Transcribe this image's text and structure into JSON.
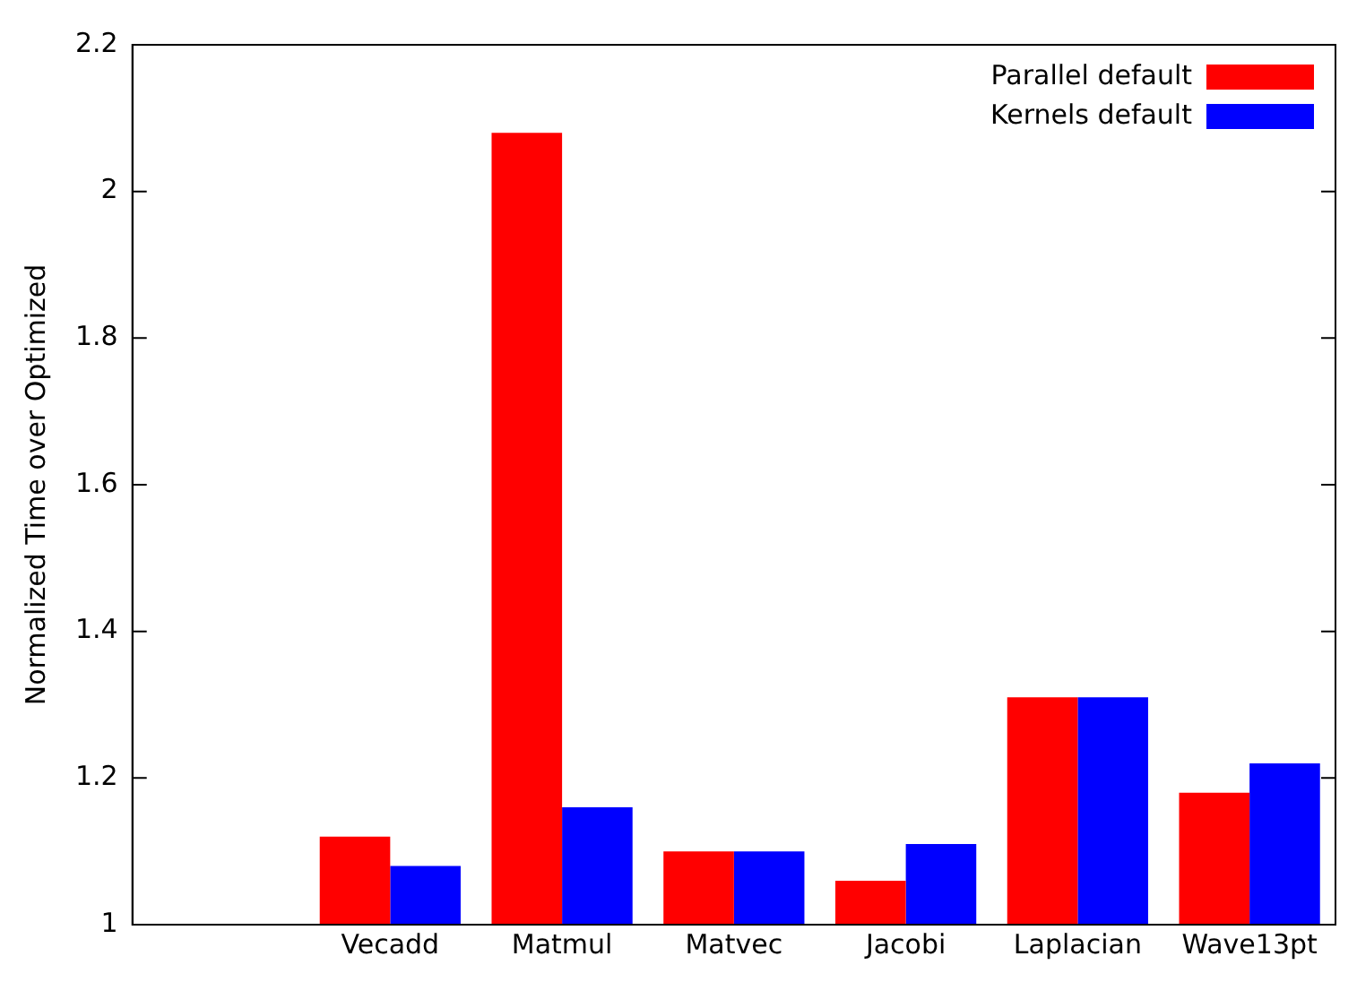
{
  "chart_data": {
    "type": "bar",
    "ylabel": "Normalized Time over Optimized",
    "categories": [
      null,
      "Vecadd",
      "Matmul",
      "Matvec",
      "Jacobi",
      "Laplacian",
      "Wave13pt"
    ],
    "series": [
      {
        "name": "Parallel default",
        "color": "#ff0000",
        "values": [
          null,
          1.12,
          2.08,
          1.1,
          1.06,
          1.31,
          1.18
        ]
      },
      {
        "name": "Kernels default",
        "color": "#0000ff",
        "values": [
          null,
          1.08,
          1.16,
          1.1,
          1.11,
          1.31,
          1.22
        ]
      }
    ],
    "ylim": [
      1,
      2.2
    ],
    "yticks": [
      1,
      1.2,
      1.4,
      1.6,
      1.8,
      2,
      2.2
    ],
    "grid": false,
    "legend": "top right"
  }
}
